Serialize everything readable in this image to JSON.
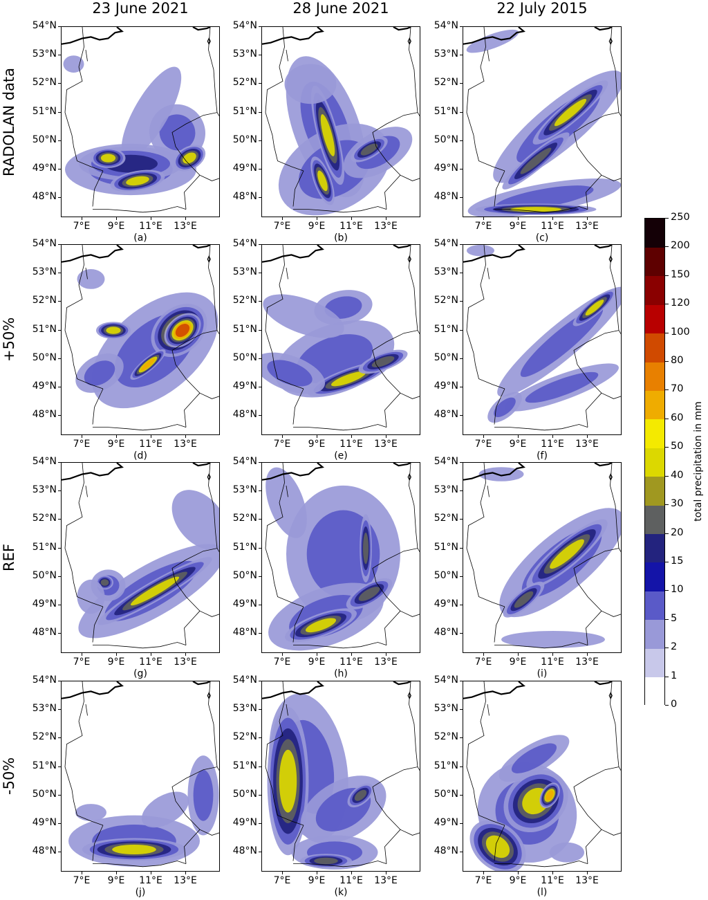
{
  "columns": [
    "23 June 2021",
    "28 June 2021",
    "22 July 2015"
  ],
  "rows": [
    "RADOLAN data",
    "+50%",
    "REF",
    "-50%"
  ],
  "lat_labels": [
    "54°N",
    "53°N",
    "52°N",
    "51°N",
    "50°N",
    "49°N",
    "48°N"
  ],
  "lon_labels": [
    "7°E",
    "9°E",
    "11°E",
    "13°E"
  ],
  "panel_labels": [
    "(a)",
    "(b)",
    "(c)",
    "(d)",
    "(e)",
    "(f)",
    "(g)",
    "(h)",
    "(i)",
    "(j)",
    "(k)",
    "(l)"
  ],
  "colorbar": {
    "title": "total precipitation in mm",
    "levels": [
      "0",
      "1",
      "2",
      "5",
      "10",
      "15",
      "20",
      "30",
      "40",
      "50",
      "60",
      "70",
      "80",
      "100",
      "120",
      "150",
      "200",
      "250"
    ],
    "colors": [
      "#ffffff",
      "#c8c8ea",
      "#9999d8",
      "#5a5ac8",
      "#1414a8",
      "#23237e",
      "#5e6060",
      "#a09820",
      "#dcd800",
      "#f4ea00",
      "#efac00",
      "#e88000",
      "#d04a00",
      "#b80000",
      "#8a0000",
      "#5e0000",
      "#140006"
    ]
  },
  "map_extent": {
    "lon_min": 5.8,
    "lon_max": 15.0,
    "lat_min": 47.3,
    "lat_max": 54.0
  },
  "panels": [
    {
      "id": "a",
      "blobs": [
        [
          9.8,
          49.0,
          3.8,
          0.9,
          0,
          1
        ],
        [
          12.5,
          50.3,
          1.6,
          1.0,
          40,
          1
        ],
        [
          11.0,
          51.0,
          3.0,
          0.6,
          60,
          0
        ],
        [
          9.8,
          49.2,
          3.0,
          0.6,
          0,
          2
        ],
        [
          8.5,
          49.4,
          1.0,
          0.35,
          0,
          4
        ],
        [
          10.2,
          48.6,
          1.6,
          0.35,
          10,
          4
        ],
        [
          13.2,
          49.4,
          1.0,
          0.4,
          30,
          4
        ],
        [
          6.5,
          52.7,
          0.6,
          0.3,
          0,
          0
        ]
      ]
    },
    {
      "id": "b",
      "blobs": [
        [
          9.5,
          50.5,
          1.9,
          2.6,
          20,
          1
        ],
        [
          10.0,
          49.0,
          3.5,
          1.4,
          30,
          1
        ],
        [
          12.5,
          49.6,
          2.2,
          0.7,
          30,
          1
        ],
        [
          9.6,
          50.2,
          0.6,
          1.8,
          15,
          4
        ],
        [
          9.3,
          48.6,
          0.5,
          0.9,
          20,
          4
        ],
        [
          12.0,
          49.7,
          1.2,
          0.3,
          30,
          3
        ],
        [
          8.6,
          52.0,
          1.5,
          0.7,
          0,
          0
        ]
      ]
    },
    {
      "id": "c",
      "blobs": [
        [
          11.3,
          50.5,
          4.8,
          0.8,
          40,
          1
        ],
        [
          10.5,
          48.0,
          4.5,
          0.5,
          10,
          1
        ],
        [
          12.0,
          51.0,
          2.8,
          0.35,
          40,
          4
        ],
        [
          10.0,
          49.3,
          2.5,
          0.3,
          40,
          3
        ],
        [
          10.0,
          47.6,
          3.5,
          0.2,
          0,
          4
        ],
        [
          7.5,
          53.5,
          1.6,
          0.25,
          20,
          0
        ]
      ]
    },
    {
      "id": "d",
      "blobs": [
        [
          11.2,
          50.3,
          4.3,
          1.5,
          40,
          1
        ],
        [
          12.6,
          51.0,
          1.8,
          0.8,
          40,
          5
        ],
        [
          12.8,
          51.0,
          1.2,
          0.5,
          40,
          6
        ],
        [
          10.8,
          49.8,
          1.3,
          0.22,
          40,
          5
        ],
        [
          8.8,
          51.0,
          1.0,
          0.3,
          0,
          4
        ],
        [
          8.0,
          49.5,
          1.5,
          0.6,
          30,
          1
        ],
        [
          7.5,
          52.8,
          0.8,
          0.35,
          0,
          0
        ]
      ]
    },
    {
      "id": "e",
      "blobs": [
        [
          10.0,
          50.0,
          3.6,
          1.2,
          20,
          1
        ],
        [
          10.5,
          51.8,
          1.7,
          0.6,
          10,
          1
        ],
        [
          10.8,
          49.3,
          2.5,
          0.35,
          20,
          4
        ],
        [
          12.8,
          49.9,
          1.5,
          0.3,
          20,
          3
        ],
        [
          8.2,
          51.5,
          1.0,
          1.5,
          70,
          0
        ],
        [
          7.4,
          49.5,
          1.0,
          1.3,
          70,
          1
        ]
      ]
    },
    {
      "id": "f",
      "blobs": [
        [
          11.5,
          50.6,
          4.8,
          0.6,
          40,
          1
        ],
        [
          11.5,
          49.0,
          3.5,
          0.45,
          20,
          1
        ],
        [
          13.4,
          51.8,
          1.6,
          0.25,
          40,
          4
        ],
        [
          8.2,
          48.3,
          1.2,
          0.35,
          40,
          1
        ],
        [
          6.8,
          53.8,
          0.8,
          0.2,
          0,
          0
        ]
      ]
    },
    {
      "id": "g",
      "blobs": [
        [
          11.0,
          49.5,
          4.8,
          0.9,
          30,
          1
        ],
        [
          11.2,
          49.5,
          3.8,
          0.35,
          30,
          4
        ],
        [
          8.5,
          49.7,
          1.0,
          0.55,
          0,
          1
        ],
        [
          8.3,
          49.8,
          0.5,
          0.25,
          0,
          3
        ],
        [
          13.8,
          52.0,
          1.3,
          1.2,
          40,
          0
        ],
        [
          7.5,
          49.3,
          0.8,
          0.6,
          0,
          0
        ]
      ]
    },
    {
      "id": "h",
      "blobs": [
        [
          10.5,
          50.8,
          3.3,
          2.4,
          0,
          1
        ],
        [
          9.5,
          48.6,
          3.5,
          1.0,
          20,
          1
        ],
        [
          9.2,
          48.3,
          2.2,
          0.4,
          20,
          4
        ],
        [
          11.8,
          51.0,
          0.35,
          1.2,
          0,
          3
        ],
        [
          7.2,
          52.6,
          1.0,
          1.3,
          20,
          0
        ],
        [
          12.0,
          49.4,
          1.5,
          0.35,
          30,
          3
        ]
      ]
    },
    {
      "id": "i",
      "blobs": [
        [
          11.5,
          50.5,
          4.5,
          1.0,
          40,
          1
        ],
        [
          11.8,
          50.8,
          3.0,
          0.45,
          40,
          4
        ],
        [
          9.3,
          49.2,
          1.5,
          0.3,
          40,
          3
        ],
        [
          11.0,
          47.8,
          3.0,
          0.3,
          0,
          0
        ],
        [
          8.0,
          53.6,
          1.3,
          0.25,
          0,
          0
        ]
      ]
    },
    {
      "id": "j",
      "blobs": [
        [
          10.0,
          48.4,
          3.8,
          0.9,
          0,
          1
        ],
        [
          10.0,
          48.1,
          3.0,
          0.4,
          0,
          4
        ],
        [
          11.8,
          49.5,
          1.5,
          0.5,
          30,
          0
        ],
        [
          14.0,
          50.0,
          0.9,
          1.4,
          0,
          1
        ],
        [
          7.5,
          49.4,
          0.9,
          0.3,
          0,
          0
        ]
      ]
    },
    {
      "id": "k",
      "blobs": [
        [
          8.5,
          51.0,
          2.2,
          2.6,
          10,
          1
        ],
        [
          7.3,
          50.5,
          1.2,
          2.6,
          0,
          4
        ],
        [
          10.5,
          49.5,
          2.7,
          1.0,
          30,
          1
        ],
        [
          10.0,
          48.0,
          2.5,
          0.6,
          0,
          1
        ],
        [
          9.5,
          47.7,
          1.5,
          0.25,
          0,
          3
        ],
        [
          11.5,
          50.0,
          0.9,
          0.3,
          40,
          3
        ]
      ]
    },
    {
      "id": "l",
      "blobs": [
        [
          9.5,
          49.4,
          2.8,
          1.8,
          40,
          1
        ],
        [
          10.0,
          49.8,
          2.0,
          1.0,
          40,
          4
        ],
        [
          10.8,
          50.0,
          0.8,
          0.3,
          60,
          5
        ],
        [
          7.8,
          48.2,
          1.3,
          1.1,
          50,
          4
        ],
        [
          9.9,
          51.3,
          2.3,
          0.5,
          30,
          1
        ],
        [
          11.8,
          48.0,
          1.0,
          0.35,
          0,
          0
        ]
      ]
    }
  ]
}
